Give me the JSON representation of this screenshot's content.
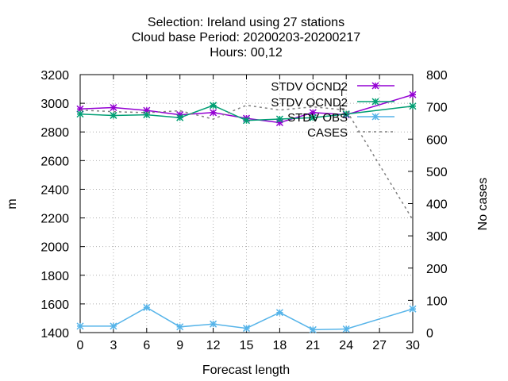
{
  "chart_data": {
    "type": "line",
    "title_lines": [
      "Selection: Ireland using    27 stations",
      "Cloud base   Period: 20200203-20200217",
      "Hours:  00,12"
    ],
    "xlabel": "Forecast length",
    "ylabel": "m",
    "y2label": "No cases",
    "x_ticks": [
      0,
      3,
      6,
      9,
      12,
      15,
      18,
      21,
      24,
      27,
      30
    ],
    "xlim": [
      0,
      30
    ],
    "ylim": [
      1400,
      3200
    ],
    "y_ticks": [
      1400,
      1600,
      1800,
      2000,
      2200,
      2400,
      2600,
      2800,
      3000,
      3200
    ],
    "y2lim": [
      0,
      800
    ],
    "y2_ticks": [
      0,
      100,
      200,
      300,
      400,
      500,
      600,
      700,
      800
    ],
    "grid": true,
    "legend_position": "top-right",
    "series": [
      {
        "name": "STDV OCND2",
        "subscript": "T",
        "color": "#9400d3",
        "axis": "y",
        "marker": "star",
        "x": [
          0,
          3,
          6,
          9,
          12,
          15,
          18,
          21,
          24,
          30
        ],
        "values": [
          2960,
          2970,
          2950,
          2920,
          2935,
          2895,
          2865,
          2935,
          2920,
          3060
        ]
      },
      {
        "name": "STDV OCND2",
        "subscript": "F",
        "color": "#009e73",
        "axis": "y",
        "marker": "star",
        "x": [
          0,
          3,
          6,
          9,
          12,
          15,
          18,
          21,
          24,
          30
        ],
        "values": [
          2925,
          2915,
          2920,
          2900,
          2985,
          2880,
          2890,
          2900,
          2925,
          2980
        ]
      },
      {
        "name": "STDV OBS",
        "color": "#56b4e9",
        "axis": "y",
        "marker": "star",
        "x": [
          0,
          3,
          6,
          9,
          12,
          15,
          18,
          21,
          24,
          30
        ],
        "values": [
          1445,
          1445,
          1575,
          1440,
          1460,
          1430,
          1540,
          1420,
          1425,
          1565
        ]
      },
      {
        "name": "CASES",
        "color": "#808080",
        "axis": "y2",
        "dashed": true,
        "x": [
          0,
          3,
          6,
          9,
          12,
          15,
          18,
          21,
          24,
          27,
          30
        ],
        "values": [
          690,
          685,
          682,
          688,
          662,
          705,
          690,
          700,
          690,
          520,
          350
        ]
      }
    ]
  }
}
